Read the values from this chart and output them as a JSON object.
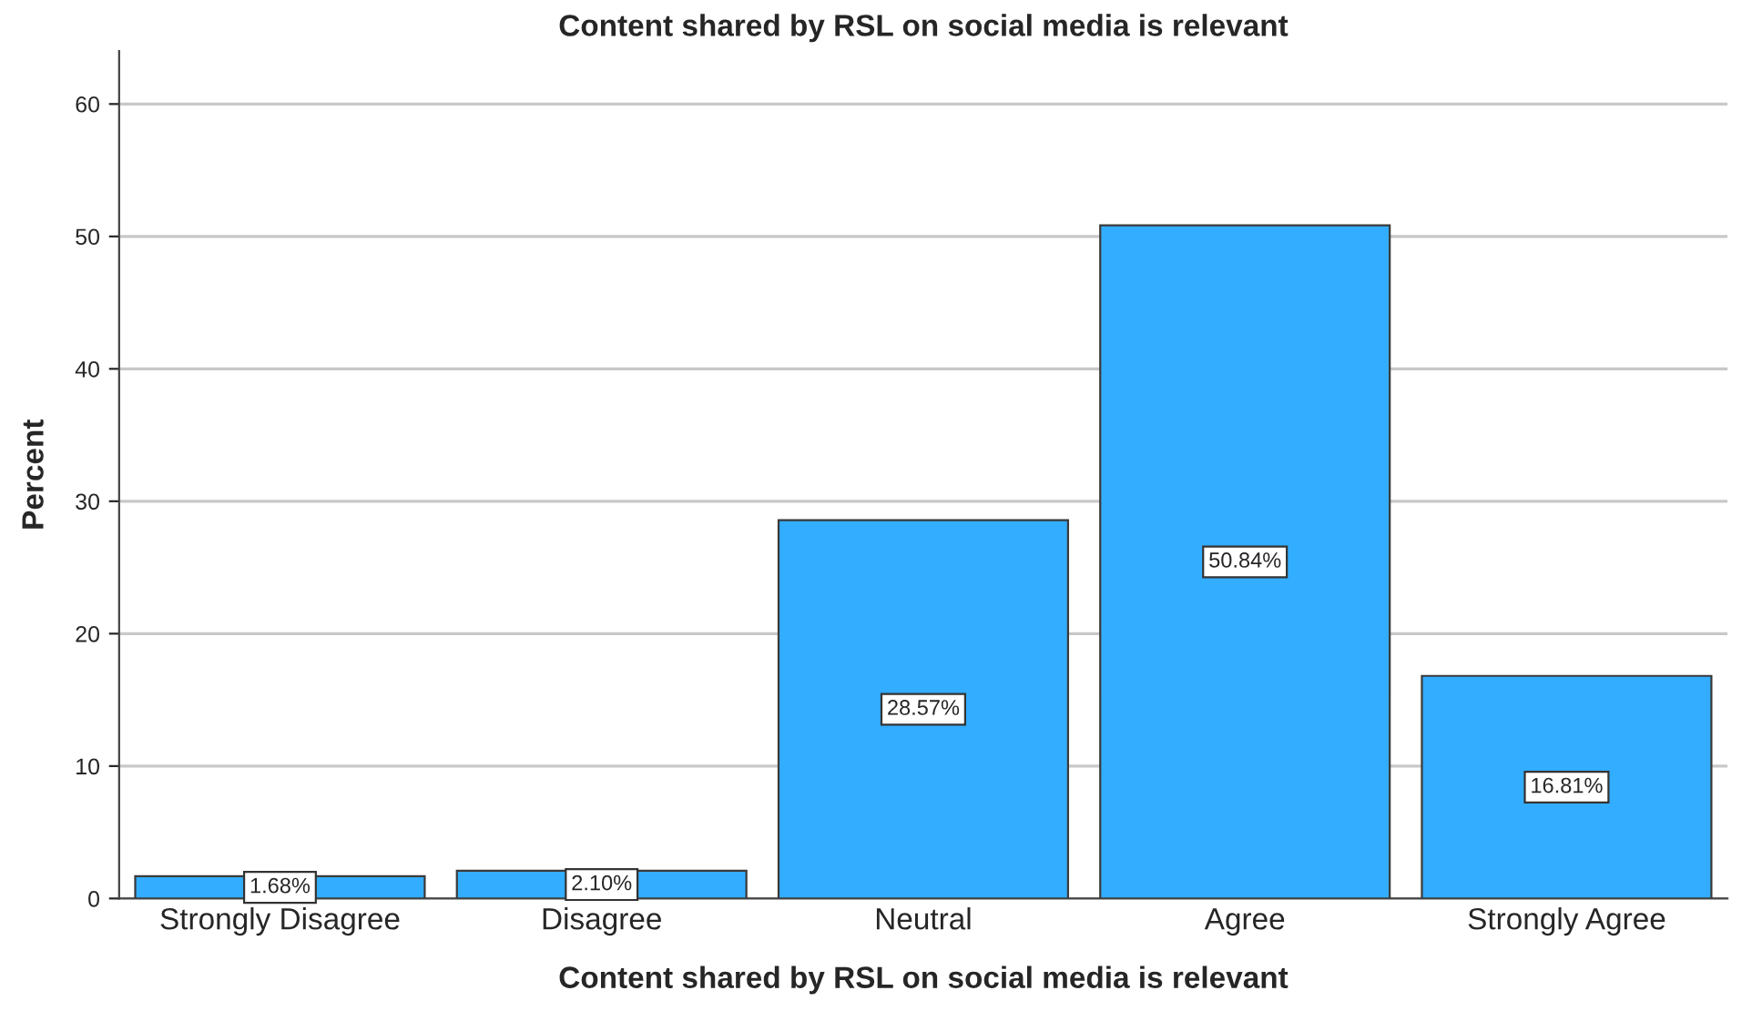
{
  "chart_data": {
    "type": "bar",
    "title": "Content shared by RSL on social media is relevant",
    "xlabel": "Content shared by RSL on social media is relevant",
    "ylabel": "Percent",
    "categories": [
      "Strongly Disagree",
      "Disagree",
      "Neutral",
      "Agree",
      "Strongly Agree"
    ],
    "values": [
      1.68,
      2.1,
      28.57,
      50.84,
      16.81
    ],
    "value_labels": [
      "1.68%",
      "2.10%",
      "28.57%",
      "50.84%",
      "16.81%"
    ],
    "color": "#33adff",
    "ylim": [
      0,
      64
    ],
    "yticks": [
      0,
      10,
      20,
      30,
      40,
      50,
      60
    ],
    "grid": "y"
  }
}
